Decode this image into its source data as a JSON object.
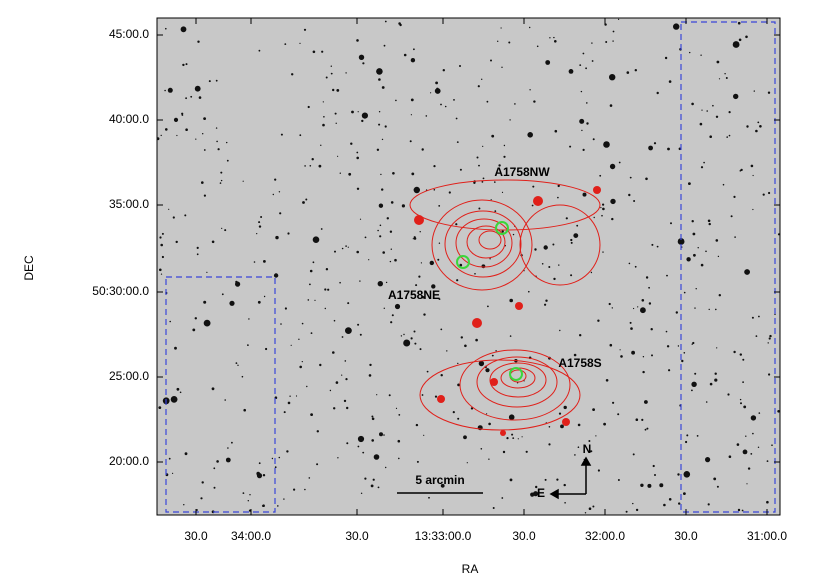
{
  "figure": {
    "x_label": "RA",
    "y_label": "DEC",
    "x_ticks": [
      "30.0",
      "34:00.0",
      "30.0",
      "13:33:00.0",
      "30.0",
      "32:00.0",
      "30.0",
      "31:00.0"
    ],
    "y_ticks": [
      "45:00.0",
      "40:00.0",
      "35:00.0",
      "50:30:00.0",
      "25:00.0",
      "20:00.0"
    ],
    "annotations": [
      "A1758NW",
      "A1758NE",
      "A1758S"
    ],
    "scale_bar": "5 arcmin",
    "compass": {
      "north": "N",
      "east": "E"
    }
  }
}
